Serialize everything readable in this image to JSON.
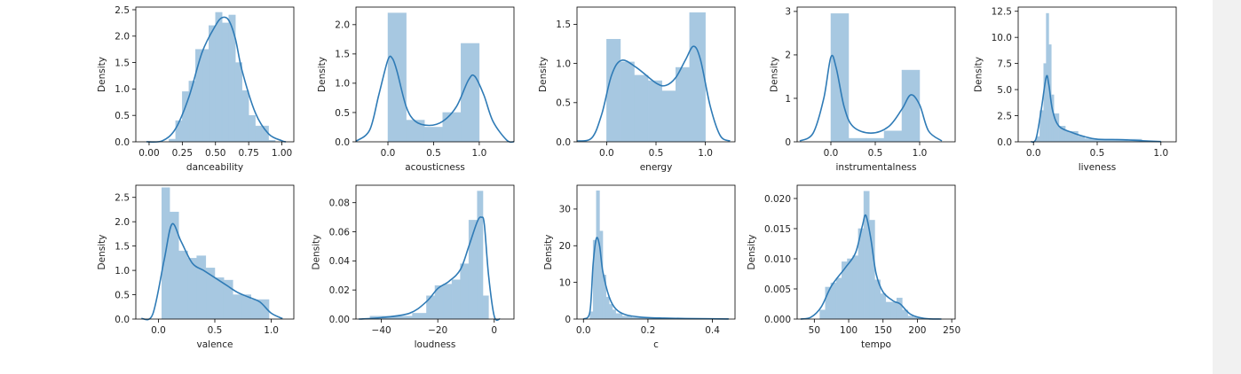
{
  "colors": {
    "hist": "#a7c8e1",
    "kde": "#2f7bb6",
    "axis": "#000000",
    "scrollbar": "#f1f1f1"
  },
  "chart_data": [
    {
      "type": "histogram",
      "xlabel": "danceability",
      "ylabel": "Density",
      "xlim": [
        -0.1,
        1.09
      ],
      "ylim": [
        0,
        2.55
      ],
      "xticks": [
        0.0,
        0.25,
        0.5,
        0.75,
        1.0
      ],
      "xtick_labels": [
        "0.00",
        "0.25",
        "0.50",
        "0.75",
        "1.00"
      ],
      "yticks": [
        0.0,
        0.5,
        1.0,
        1.5,
        2.0,
        2.5
      ],
      "ytick_labels": [
        "0.0",
        "0.5",
        "1.0",
        "1.5",
        "2.0",
        "2.5"
      ],
      "bins": [
        [
          0.15,
          0.2,
          0.05
        ],
        [
          0.2,
          0.25,
          0.4
        ],
        [
          0.25,
          0.3,
          0.95
        ],
        [
          0.3,
          0.35,
          1.15
        ],
        [
          0.35,
          0.4,
          1.75
        ],
        [
          0.4,
          0.45,
          1.75
        ],
        [
          0.45,
          0.5,
          2.2
        ],
        [
          0.5,
          0.55,
          2.45
        ],
        [
          0.55,
          0.6,
          2.25
        ],
        [
          0.6,
          0.65,
          2.4
        ],
        [
          0.65,
          0.7,
          1.5
        ],
        [
          0.7,
          0.75,
          0.97
        ],
        [
          0.75,
          0.8,
          0.5
        ],
        [
          0.8,
          0.85,
          0.3
        ],
        [
          0.85,
          0.9,
          0.3
        ],
        [
          0.9,
          0.95,
          0.03
        ]
      ],
      "kde": [
        [
          -0.02,
          0
        ],
        [
          0.1,
          0.02
        ],
        [
          0.2,
          0.25
        ],
        [
          0.3,
          0.85
        ],
        [
          0.4,
          1.7
        ],
        [
          0.5,
          2.2
        ],
        [
          0.55,
          2.35
        ],
        [
          0.6,
          2.3
        ],
        [
          0.65,
          1.95
        ],
        [
          0.7,
          1.35
        ],
        [
          0.8,
          0.55
        ],
        [
          0.9,
          0.15
        ],
        [
          1.0,
          0.02
        ],
        [
          1.03,
          0
        ]
      ]
    },
    {
      "type": "histogram",
      "xlabel": "acousticness",
      "ylabel": "Density",
      "xlim": [
        -0.35,
        1.38
      ],
      "ylim": [
        0,
        2.3
      ],
      "xticks": [
        0.0,
        0.5,
        1.0
      ],
      "xtick_labels": [
        "0.0",
        "0.5",
        "1.0"
      ],
      "yticks": [
        0.0,
        0.5,
        1.0,
        1.5,
        2.0
      ],
      "ytick_labels": [
        "0.0",
        "0.5",
        "1.0",
        "1.5",
        "2.0"
      ],
      "bins": [
        [
          0,
          0.2,
          2.2
        ],
        [
          0.2,
          0.4,
          0.37
        ],
        [
          0.4,
          0.6,
          0.25
        ],
        [
          0.6,
          0.8,
          0.5
        ],
        [
          0.8,
          1.0,
          1.68
        ]
      ],
      "kde": [
        [
          -0.35,
          0.01
        ],
        [
          -0.2,
          0.2
        ],
        [
          -0.1,
          0.8
        ],
        [
          0.0,
          1.4
        ],
        [
          0.05,
          1.42
        ],
        [
          0.1,
          1.2
        ],
        [
          0.2,
          0.6
        ],
        [
          0.3,
          0.35
        ],
        [
          0.45,
          0.28
        ],
        [
          0.6,
          0.35
        ],
        [
          0.75,
          0.6
        ],
        [
          0.88,
          1.05
        ],
        [
          0.95,
          1.12
        ],
        [
          1.05,
          0.8
        ],
        [
          1.15,
          0.35
        ],
        [
          1.3,
          0.03
        ],
        [
          1.38,
          0
        ]
      ]
    },
    {
      "type": "histogram",
      "xlabel": "energy",
      "ylabel": "Density",
      "xlim": [
        -0.3,
        1.3
      ],
      "ylim": [
        0,
        1.72
      ],
      "xticks": [
        0.0,
        0.5,
        1.0
      ],
      "xtick_labels": [
        "0.0",
        "0.5",
        "1.0"
      ],
      "yticks": [
        0.0,
        0.5,
        1.0,
        1.5
      ],
      "ytick_labels": [
        "0.0",
        "0.5",
        "1.0",
        "1.5"
      ],
      "bins": [
        [
          0,
          0.14,
          1.31
        ],
        [
          0.14,
          0.28,
          1.02
        ],
        [
          0.28,
          0.42,
          0.85
        ],
        [
          0.42,
          0.56,
          0.78
        ],
        [
          0.56,
          0.7,
          0.65
        ],
        [
          0.7,
          0.84,
          0.95
        ],
        [
          0.84,
          1.0,
          1.65
        ]
      ],
      "kde": [
        [
          -0.3,
          0.01
        ],
        [
          -0.15,
          0.05
        ],
        [
          -0.05,
          0.35
        ],
        [
          0.05,
          0.85
        ],
        [
          0.15,
          1.04
        ],
        [
          0.3,
          0.95
        ],
        [
          0.5,
          0.75
        ],
        [
          0.6,
          0.72
        ],
        [
          0.7,
          0.82
        ],
        [
          0.8,
          1.05
        ],
        [
          0.88,
          1.22
        ],
        [
          0.95,
          1.05
        ],
        [
          1.05,
          0.45
        ],
        [
          1.15,
          0.08
        ],
        [
          1.25,
          0.01
        ]
      ]
    },
    {
      "type": "histogram",
      "xlabel": "instrumentalness",
      "ylabel": "Density",
      "xlim": [
        -0.38,
        1.4
      ],
      "ylim": [
        0,
        3.1
      ],
      "xticks": [
        0.0,
        0.5,
        1.0
      ],
      "xtick_labels": [
        "0.0",
        "0.5",
        "1.0"
      ],
      "yticks": [
        0,
        1,
        2,
        3
      ],
      "ytick_labels": [
        "0",
        "1",
        "2",
        "3"
      ],
      "bins": [
        [
          0,
          0.2,
          2.95
        ],
        [
          0.2,
          0.4,
          0.08
        ],
        [
          0.4,
          0.6,
          0.08
        ],
        [
          0.6,
          0.8,
          0.25
        ],
        [
          0.8,
          1.0,
          1.65
        ]
      ],
      "kde": [
        [
          -0.35,
          0.02
        ],
        [
          -0.2,
          0.2
        ],
        [
          -0.08,
          1.0
        ],
        [
          0.0,
          1.95
        ],
        [
          0.06,
          1.7
        ],
        [
          0.15,
          0.8
        ],
        [
          0.25,
          0.35
        ],
        [
          0.45,
          0.2
        ],
        [
          0.65,
          0.35
        ],
        [
          0.8,
          0.75
        ],
        [
          0.9,
          1.08
        ],
        [
          1.0,
          0.85
        ],
        [
          1.1,
          0.25
        ],
        [
          1.25,
          0.02
        ]
      ]
    },
    {
      "type": "histogram",
      "xlabel": "liveness",
      "ylabel": "Density",
      "xlim": [
        -0.12,
        1.12
      ],
      "ylim": [
        0,
        12.9
      ],
      "xticks": [
        0.0,
        0.5,
        1.0
      ],
      "xtick_labels": [
        "0.0",
        "0.5",
        "1.0"
      ],
      "yticks": [
        0.0,
        2.5,
        5.0,
        7.5,
        10.0,
        12.5
      ],
      "ytick_labels": [
        "0.0",
        "2.5",
        "5.0",
        "7.5",
        "10.0",
        "12.5"
      ],
      "bins": [
        [
          0.02,
          0.05,
          0.5
        ],
        [
          0.05,
          0.08,
          3.0
        ],
        [
          0.08,
          0.1,
          7.5
        ],
        [
          0.1,
          0.12,
          12.3
        ],
        [
          0.12,
          0.14,
          9.3
        ],
        [
          0.14,
          0.16,
          4.5
        ],
        [
          0.16,
          0.2,
          2.7
        ],
        [
          0.2,
          0.25,
          1.5
        ],
        [
          0.25,
          0.3,
          1.0
        ],
        [
          0.3,
          0.35,
          1.0
        ],
        [
          0.35,
          0.4,
          0.55
        ],
        [
          0.4,
          0.5,
          0.3
        ],
        [
          0.5,
          0.65,
          0.2
        ],
        [
          0.65,
          0.85,
          0.25
        ],
        [
          0.85,
          1.0,
          0.08
        ]
      ],
      "kde": [
        [
          -0.02,
          0
        ],
        [
          0.02,
          0.3
        ],
        [
          0.06,
          3.0
        ],
        [
          0.1,
          6.2
        ],
        [
          0.12,
          5.5
        ],
        [
          0.15,
          3.0
        ],
        [
          0.2,
          1.5
        ],
        [
          0.3,
          0.9
        ],
        [
          0.4,
          0.5
        ],
        [
          0.5,
          0.25
        ],
        [
          0.7,
          0.2
        ],
        [
          0.85,
          0.1
        ],
        [
          1.0,
          0.02
        ]
      ]
    },
    {
      "type": "histogram",
      "xlabel": "valence",
      "ylabel": "Density",
      "xlim": [
        -0.2,
        1.2
      ],
      "ylim": [
        0,
        2.75
      ],
      "xticks": [
        0.0,
        0.5,
        1.0
      ],
      "xtick_labels": [
        "0.0",
        "0.5",
        "1.0"
      ],
      "yticks": [
        0.0,
        0.5,
        1.0,
        1.5,
        2.0,
        2.5
      ],
      "ytick_labels": [
        "0.0",
        "0.5",
        "1.0",
        "1.5",
        "2.0",
        "2.5"
      ],
      "bins": [
        [
          0.03,
          0.1,
          2.7
        ],
        [
          0.1,
          0.18,
          2.2
        ],
        [
          0.18,
          0.26,
          1.4
        ],
        [
          0.26,
          0.34,
          1.25
        ],
        [
          0.34,
          0.42,
          1.3
        ],
        [
          0.42,
          0.5,
          1.05
        ],
        [
          0.5,
          0.58,
          0.85
        ],
        [
          0.58,
          0.66,
          0.8
        ],
        [
          0.66,
          0.74,
          0.5
        ],
        [
          0.74,
          0.82,
          0.5
        ],
        [
          0.82,
          0.9,
          0.4
        ],
        [
          0.9,
          0.98,
          0.4
        ]
      ],
      "kde": [
        [
          -0.15,
          0.01
        ],
        [
          -0.05,
          0.1
        ],
        [
          0.05,
          1.2
        ],
        [
          0.12,
          1.95
        ],
        [
          0.2,
          1.6
        ],
        [
          0.3,
          1.15
        ],
        [
          0.4,
          1.0
        ],
        [
          0.5,
          0.85
        ],
        [
          0.6,
          0.7
        ],
        [
          0.7,
          0.55
        ],
        [
          0.8,
          0.45
        ],
        [
          0.9,
          0.35
        ],
        [
          1.0,
          0.12
        ],
        [
          1.1,
          0.01
        ]
      ]
    },
    {
      "type": "histogram",
      "xlabel": "loudness",
      "ylabel": "Density",
      "xlim": [
        -49,
        7
      ],
      "ylim": [
        0,
        0.092
      ],
      "xticks": [
        -40,
        -20,
        0
      ],
      "xtick_labels": [
        "−40",
        "−20",
        "0"
      ],
      "yticks": [
        0.0,
        0.02,
        0.04,
        0.06,
        0.08
      ],
      "ytick_labels": [
        "0.00",
        "0.02",
        "0.04",
        "0.06",
        "0.08"
      ],
      "bins": [
        [
          -44,
          -39,
          0.002
        ],
        [
          -39,
          -34,
          0.002
        ],
        [
          -34,
          -29,
          0.002
        ],
        [
          -29,
          -24,
          0.004
        ],
        [
          -24,
          -21,
          0.016
        ],
        [
          -21,
          -18,
          0.023
        ],
        [
          -18,
          -15,
          0.024
        ],
        [
          -15,
          -12,
          0.027
        ],
        [
          -12,
          -9,
          0.038
        ],
        [
          -9,
          -6,
          0.068
        ],
        [
          -6,
          -4,
          0.088
        ],
        [
          -4,
          -2,
          0.016
        ]
      ],
      "kde": [
        [
          -48,
          0
        ],
        [
          -40,
          0.001
        ],
        [
          -30,
          0.004
        ],
        [
          -24,
          0.012
        ],
        [
          -20,
          0.021
        ],
        [
          -16,
          0.026
        ],
        [
          -12,
          0.034
        ],
        [
          -9,
          0.05
        ],
        [
          -6,
          0.067
        ],
        [
          -4.5,
          0.07
        ],
        [
          -3.5,
          0.065
        ],
        [
          -2,
          0.03
        ],
        [
          0,
          0.002
        ],
        [
          2,
          0
        ]
      ]
    },
    {
      "type": "histogram",
      "xlabel": "c",
      "ylabel": "Density",
      "xlim": [
        -0.02,
        0.47
      ],
      "ylim": [
        0,
        36.5
      ],
      "xticks": [
        0.0,
        0.2,
        0.4
      ],
      "xtick_labels": [
        "0.0",
        "0.2",
        "0.4"
      ],
      "yticks": [
        0,
        10,
        20,
        30
      ],
      "ytick_labels": [
        "0",
        "10",
        "20",
        "30"
      ],
      "bins": [
        [
          0.02,
          0.03,
          2.0
        ],
        [
          0.03,
          0.04,
          21.5
        ],
        [
          0.04,
          0.05,
          35.0
        ],
        [
          0.05,
          0.06,
          24.0
        ],
        [
          0.06,
          0.07,
          12.0
        ],
        [
          0.07,
          0.08,
          6.0
        ],
        [
          0.08,
          0.09,
          4.0
        ],
        [
          0.09,
          0.1,
          2.5
        ],
        [
          0.1,
          0.12,
          1.5
        ],
        [
          0.12,
          0.15,
          0.8
        ],
        [
          0.15,
          0.2,
          0.4
        ],
        [
          0.2,
          0.45,
          0.2
        ]
      ],
      "kde": [
        [
          0.0,
          0.01
        ],
        [
          0.02,
          2.0
        ],
        [
          0.03,
          15.0
        ],
        [
          0.04,
          22.0
        ],
        [
          0.05,
          20.0
        ],
        [
          0.06,
          13.0
        ],
        [
          0.08,
          6.0
        ],
        [
          0.1,
          2.8
        ],
        [
          0.13,
          1.2
        ],
        [
          0.18,
          0.5
        ],
        [
          0.25,
          0.25
        ],
        [
          0.35,
          0.1
        ],
        [
          0.45,
          0.02
        ]
      ]
    },
    {
      "type": "histogram",
      "xlabel": "tempo",
      "ylabel": "Density",
      "xlim": [
        25,
        255
      ],
      "ylim": [
        0,
        0.0222
      ],
      "xticks": [
        50,
        100,
        150,
        200,
        250
      ],
      "xtick_labels": [
        "50",
        "100",
        "150",
        "200",
        "250"
      ],
      "yticks": [
        0.0,
        0.005,
        0.01,
        0.015,
        0.02
      ],
      "ytick_labels": [
        "0.000",
        "0.005",
        "0.010",
        "0.015",
        "0.020"
      ],
      "bins": [
        [
          58,
          66,
          0.0015
        ],
        [
          66,
          74,
          0.0053
        ],
        [
          74,
          82,
          0.006
        ],
        [
          82,
          90,
          0.0068
        ],
        [
          90,
          98,
          0.0095
        ],
        [
          98,
          106,
          0.01
        ],
        [
          106,
          114,
          0.0105
        ],
        [
          114,
          122,
          0.015
        ],
        [
          122,
          130,
          0.0212
        ],
        [
          130,
          138,
          0.0164
        ],
        [
          138,
          146,
          0.0065
        ],
        [
          146,
          154,
          0.0042
        ],
        [
          154,
          162,
          0.0028
        ],
        [
          162,
          170,
          0.0028
        ],
        [
          170,
          178,
          0.0035
        ],
        [
          178,
          186,
          0.0015
        ],
        [
          186,
          194,
          0.0005
        ],
        [
          194,
          204,
          0.0003
        ]
      ],
      "kde": [
        [
          30,
          0
        ],
        [
          45,
          0.0003
        ],
        [
          60,
          0.002
        ],
        [
          75,
          0.0055
        ],
        [
          95,
          0.0085
        ],
        [
          110,
          0.011
        ],
        [
          120,
          0.0155
        ],
        [
          125,
          0.0172
        ],
        [
          132,
          0.0135
        ],
        [
          140,
          0.0075
        ],
        [
          150,
          0.0045
        ],
        [
          165,
          0.003
        ],
        [
          175,
          0.0025
        ],
        [
          190,
          0.0008
        ],
        [
          210,
          0.0001
        ],
        [
          235,
          0
        ]
      ]
    }
  ]
}
